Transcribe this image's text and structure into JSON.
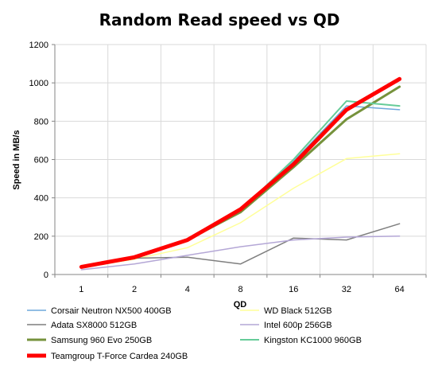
{
  "chart_data": {
    "type": "line",
    "title": "Random Read speed vs QD",
    "xlabel": "QD",
    "ylabel": "Speed in MB/s",
    "categories": [
      "1",
      "2",
      "4",
      "8",
      "16",
      "32",
      "64"
    ],
    "ylim": [
      0,
      1200
    ],
    "yticks": [
      "0",
      "200",
      "400",
      "600",
      "800",
      "1000",
      "1200"
    ],
    "grid": true,
    "legend_position": "bottom",
    "series": [
      {
        "name": "Corsair Neutron NX500 400GB",
        "color": "#6fa8dc",
        "width": 1.5,
        "values": [
          40,
          90,
          180,
          330,
          590,
          880,
          860
        ]
      },
      {
        "name": "WD Black 512GB",
        "color": "#ffff99",
        "width": 1.5,
        "values": [
          35,
          80,
          140,
          270,
          450,
          605,
          630
        ]
      },
      {
        "name": "Adata SX8000 512GB",
        "color": "#7f7f7f",
        "width": 1.5,
        "values": [
          40,
          85,
          90,
          55,
          190,
          180,
          265
        ]
      },
      {
        "name": "Intel 600p 256GB",
        "color": "#b4a7d6",
        "width": 1.5,
        "values": [
          25,
          55,
          100,
          145,
          180,
          195,
          200
        ]
      },
      {
        "name": "Samsung 960 Evo 250GB",
        "color": "#76923c",
        "width": 3,
        "values": [
          40,
          85,
          180,
          325,
          560,
          810,
          980
        ]
      },
      {
        "name": "Kingston KC1000 960GB",
        "color": "#66cc99",
        "width": 2,
        "values": [
          40,
          90,
          180,
          335,
          600,
          905,
          880
        ]
      },
      {
        "name": "Teamgroup T-Force Cardea 240GB",
        "color": "#ff0000",
        "width": 5,
        "values": [
          40,
          90,
          180,
          340,
          575,
          860,
          1020
        ]
      }
    ]
  }
}
